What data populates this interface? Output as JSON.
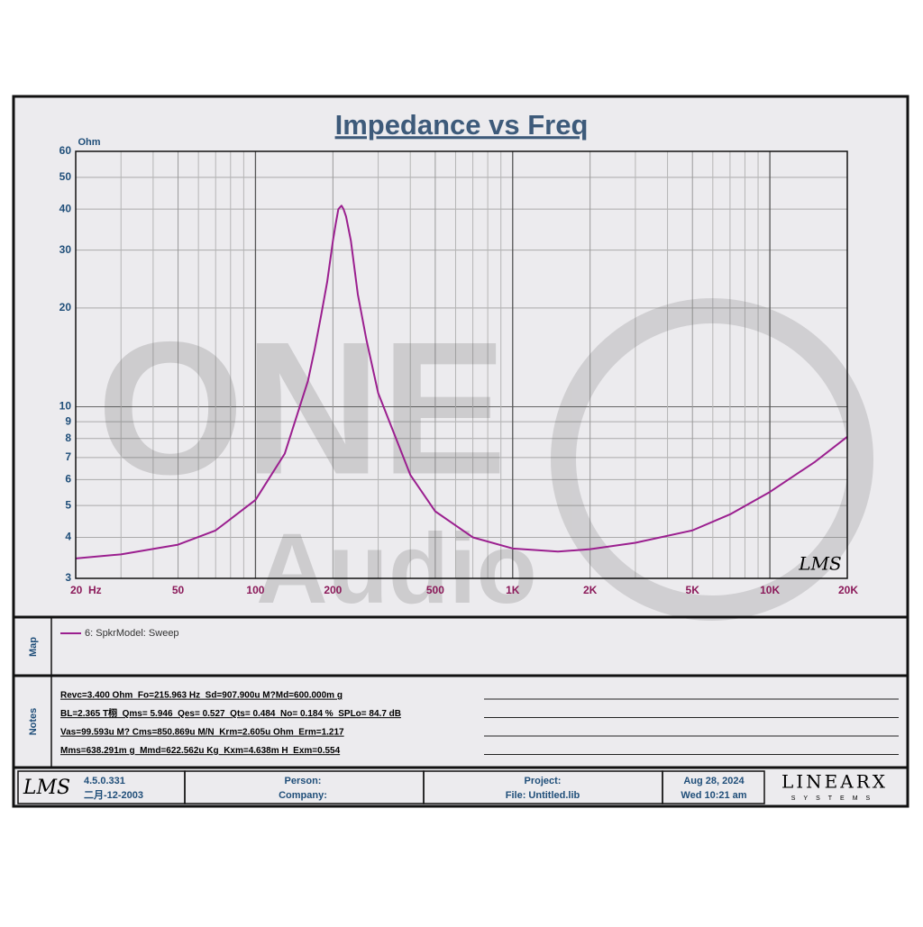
{
  "chart_data": {
    "type": "line",
    "title": "Impedance vs Freq",
    "y_label": "Ohm",
    "logo": "LMS",
    "watermark": [
      "ONE",
      "Audio"
    ],
    "x": [
      20,
      30,
      50,
      70,
      100,
      130,
      160,
      170,
      180,
      190,
      200,
      205,
      210,
      216,
      220,
      225,
      235,
      250,
      270,
      300,
      400,
      500,
      700,
      1000,
      1500,
      2000,
      3000,
      5000,
      7000,
      10000,
      15000,
      20000
    ],
    "series": [
      {
        "name": "6: SpkrModel: Sweep",
        "color": "#9b1f8f",
        "values": [
          3.45,
          3.55,
          3.8,
          4.2,
          5.2,
          7.2,
          12,
          15,
          19,
          24,
          32,
          36,
          40,
          41,
          40,
          38,
          32,
          22,
          16,
          11,
          6.2,
          4.8,
          4.0,
          3.7,
          3.62,
          3.68,
          3.85,
          4.2,
          4.7,
          5.5,
          6.8,
          8.1
        ]
      }
    ],
    "xlim": [
      20,
      20000
    ],
    "ylim": [
      3,
      60
    ],
    "xlog": true,
    "ylog": true,
    "grid": true,
    "xticks": [
      {
        "value": 20,
        "label": "20  Hz"
      },
      50,
      100,
      200,
      500,
      {
        "value": 1000,
        "label": "1K"
      },
      {
        "value": 2000,
        "label": "2K"
      },
      {
        "value": 5000,
        "label": "5K"
      },
      {
        "value": 10000,
        "label": "10K"
      },
      {
        "value": 20000,
        "label": "20K"
      }
    ],
    "xminor": [
      30,
      40,
      60,
      70,
      80,
      90,
      300,
      400,
      600,
      700,
      800,
      900,
      3000,
      4000,
      6000,
      7000,
      8000,
      9000
    ],
    "yticks": [
      3,
      4,
      5,
      6,
      7,
      8,
      9,
      10,
      20,
      30,
      40,
      50,
      60
    ]
  },
  "map": {
    "label": "Map"
  },
  "notes": {
    "label": "Notes",
    "lines": [
      "Revc=3.400 Ohm  Fo=215.963 Hz  Sd=907.900u M?Md=600.000m g",
      "BL=2.365 T栩  Qms= 5.946  Qes= 0.527  Qts= 0.484  No= 0.184 %  SPLo= 84.7 dB",
      "Vas=99.593u M? Cms=850.869u M/N  Krm=2.605u Ohm  Erm=1.217",
      "Mms=638.291m g  Mmd=622.562u Kg  Kxm=4.638m H  Exm=0.554"
    ]
  },
  "footer": {
    "logo": "LMS",
    "version": "4.5.0.331",
    "build_date": "二月-12-2003",
    "person": "Person:",
    "company": "Company:",
    "project": "Project:",
    "file": "File: Untitled.lib",
    "date": "Aug 28, 2024",
    "time": "Wed 10:21 am",
    "brand": "LINEARX",
    "brand_sub": "SYSTEMS"
  }
}
